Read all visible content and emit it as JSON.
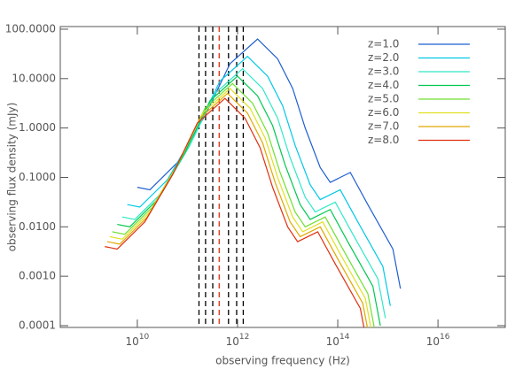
{
  "chart_data": {
    "type": "line",
    "x_label": "observing frequency (Hz)",
    "y_label": "observing flux density (mJy)",
    "xscale": "log",
    "yscale": "log",
    "xlim": [
      290000000.0,
      2.2e+17
    ],
    "ylim": [
      9.2e-05,
      113
    ],
    "xticks": [
      {
        "value": 10000000000.0,
        "label": "10",
        "exponent": "10"
      },
      {
        "value": 1000000000000.0,
        "label": "10",
        "exponent": "12"
      },
      {
        "value": 100000000000000.0,
        "label": "10",
        "exponent": "14"
      },
      {
        "value": 1e+16,
        "label": "10",
        "exponent": "16"
      }
    ],
    "yticks": [
      {
        "value": 100,
        "label": "100.0000"
      },
      {
        "value": 10,
        "label": "10.0000"
      },
      {
        "value": 1,
        "label": "1.0000"
      },
      {
        "value": 0.1,
        "label": "0.1000"
      },
      {
        "value": 0.01,
        "label": "0.0100"
      },
      {
        "value": 0.001,
        "label": "0.0010"
      },
      {
        "value": 0.0001,
        "label": "0.0001"
      }
    ],
    "legend": "top-right",
    "vlines": [
      {
        "x": 170000000000.0,
        "color": "#000000"
      },
      {
        "x": 230000000000.0,
        "color": "#000000"
      },
      {
        "x": 320000000000.0,
        "color": "#000000"
      },
      {
        "x": 430000000000.0,
        "color": "#e03010"
      },
      {
        "x": 660000000000.0,
        "color": "#000000"
      },
      {
        "x": 960000000000.0,
        "color": "#000000"
      },
      {
        "x": 1300000000000.0,
        "color": "#000000"
      }
    ],
    "series": [
      {
        "name": "z=1.0",
        "color": "#1f5fd0",
        "x": [
          10000000000.0,
          17800000000.0,
          63100000000.0,
          224000000000.0,
          708000000000.0,
          2510000000000.0,
          6310000000000.0,
          12600000000000.0,
          22400000000000.0,
          44700000000000.0,
          70800000000000.0,
          178000000000000.0,
          398000000000000.0,
          1260000000000000.0,
          1780000000000000.0
        ],
        "values": [
          0.0631,
          0.0562,
          0.2,
          1.78,
          20.0,
          63.1,
          25.1,
          6.31,
          1.0,
          0.158,
          0.0794,
          0.126,
          0.0282,
          0.00355,
          0.000562
        ]
      },
      {
        "name": "z=2.0",
        "color": "#00c8e6",
        "x": [
          6310000000.0,
          11200000000.0,
          39800000000.0,
          141000000000.0,
          447000000000.0,
          1580000000000.0,
          3980000000000.0,
          7940000000000.0,
          14100000000000.0,
          28200000000000.0,
          44700000000000.0,
          112000000000000.0,
          251000000000000.0,
          794000000000000.0,
          1120000000000000.0
        ],
        "values": [
          0.0282,
          0.0251,
          0.0891,
          0.794,
          8.91,
          28.2,
          11.2,
          2.82,
          0.447,
          0.0708,
          0.0355,
          0.0562,
          0.0126,
          0.00158,
          0.000251
        ]
      },
      {
        "name": "z=3.0",
        "color": "#30e8c8",
        "x": [
          5010000000.0,
          8910000000.0,
          31600000000.0,
          112000000000.0,
          355000000000.0,
          1260000000000.0,
          3160000000000.0,
          6310000000000.0,
          11200000000000.0,
          22400000000000.0,
          35500000000000.0,
          89100000000000.0,
          200000000000000.0,
          631000000000000.0,
          891000000000000.0
        ],
        "values": [
          0.0158,
          0.0141,
          0.0501,
          0.447,
          5.01,
          15.8,
          6.31,
          1.58,
          0.251,
          0.0398,
          0.02,
          0.0316,
          0.00708,
          0.000891,
          0.000141
        ]
      },
      {
        "name": "z=4.0",
        "color": "#00c850",
        "x": [
          3980000000.0,
          7080000000.0,
          25100000000.0,
          89100000000.0,
          282000000000.0,
          1000000000000.0,
          2510000000000.0,
          5010000000000.0,
          8910000000000.0,
          17800000000000.0,
          28200000000000.0,
          70800000000000.0,
          158000000000000.0,
          501000000000000.0,
          708000000000000.0
        ],
        "values": [
          0.0112,
          0.01,
          0.0355,
          0.316,
          3.55,
          11.2,
          4.47,
          1.12,
          0.178,
          0.0282,
          0.0141,
          0.0224,
          0.00501,
          0.000631,
          0.0001
        ]
      },
      {
        "name": "z=5.0",
        "color": "#70e030",
        "x": [
          3160000000.0,
          5620000000.0,
          20000000000.0,
          70800000000.0,
          224000000000.0,
          794000000000.0,
          2000000000000.0,
          3980000000000.0,
          7080000000000.0,
          14100000000000.0,
          22400000000000.0,
          56200000000000.0,
          126000000000000.0,
          398000000000000.0,
          562000000000000.0
        ],
        "values": [
          0.00794,
          0.00708,
          0.0251,
          0.224,
          2.51,
          7.94,
          3.16,
          0.794,
          0.126,
          0.02,
          0.01,
          0.0158,
          0.00355,
          0.000447,
          7.08e-05
        ]
      },
      {
        "name": "z=6.0",
        "color": "#e0e020",
        "x": [
          2820000000.0,
          5010000000.0,
          17800000000.0,
          63100000000.0,
          200000000000.0,
          708000000000.0,
          1780000000000.0,
          3550000000000.0,
          6310000000000.0,
          12600000000000.0,
          20000000000000.0,
          50100000000000.0,
          112000000000000.0,
          355000000000000.0,
          501000000000000.0
        ],
        "values": [
          0.00631,
          0.00562,
          0.02,
          0.178,
          2.0,
          6.31,
          2.51,
          0.631,
          0.1,
          0.0158,
          0.00794,
          0.0126,
          0.00282,
          0.000355,
          5.62e-05
        ]
      },
      {
        "name": "z=7.0",
        "color": "#e0a800",
        "x": [
          2510000000.0,
          4470000000.0,
          15800000000.0,
          56200000000.0,
          178000000000.0,
          631000000000.0,
          1580000000000.0,
          3160000000000.0,
          5620000000000.0,
          11200000000000.0,
          17800000000000.0,
          44700000000000.0,
          100000000000000.0,
          316000000000000.0,
          447000000000000.0
        ],
        "values": [
          0.00501,
          0.00447,
          0.0158,
          0.141,
          1.58,
          5.01,
          2.0,
          0.501,
          0.0794,
          0.0126,
          0.00631,
          0.01,
          0.00224,
          0.000282,
          4.47e-05
        ]
      },
      {
        "name": "z=8.0",
        "color": "#e03010",
        "x": [
          2240000000.0,
          3980000000.0,
          14100000000.0,
          50100000000.0,
          158000000000.0,
          562000000000.0,
          1410000000000.0,
          2820000000000.0,
          5010000000000.0,
          10000000000000.0,
          15800000000000.0,
          39800000000000.0,
          89100000000000.0,
          282000000000000.0,
          398000000000000.0
        ],
        "values": [
          0.00398,
          0.00355,
          0.0126,
          0.112,
          1.26,
          3.98,
          1.58,
          0.398,
          0.0631,
          0.01,
          0.00501,
          0.00794,
          0.00178,
          0.000224,
          3.55e-05
        ]
      }
    ]
  }
}
